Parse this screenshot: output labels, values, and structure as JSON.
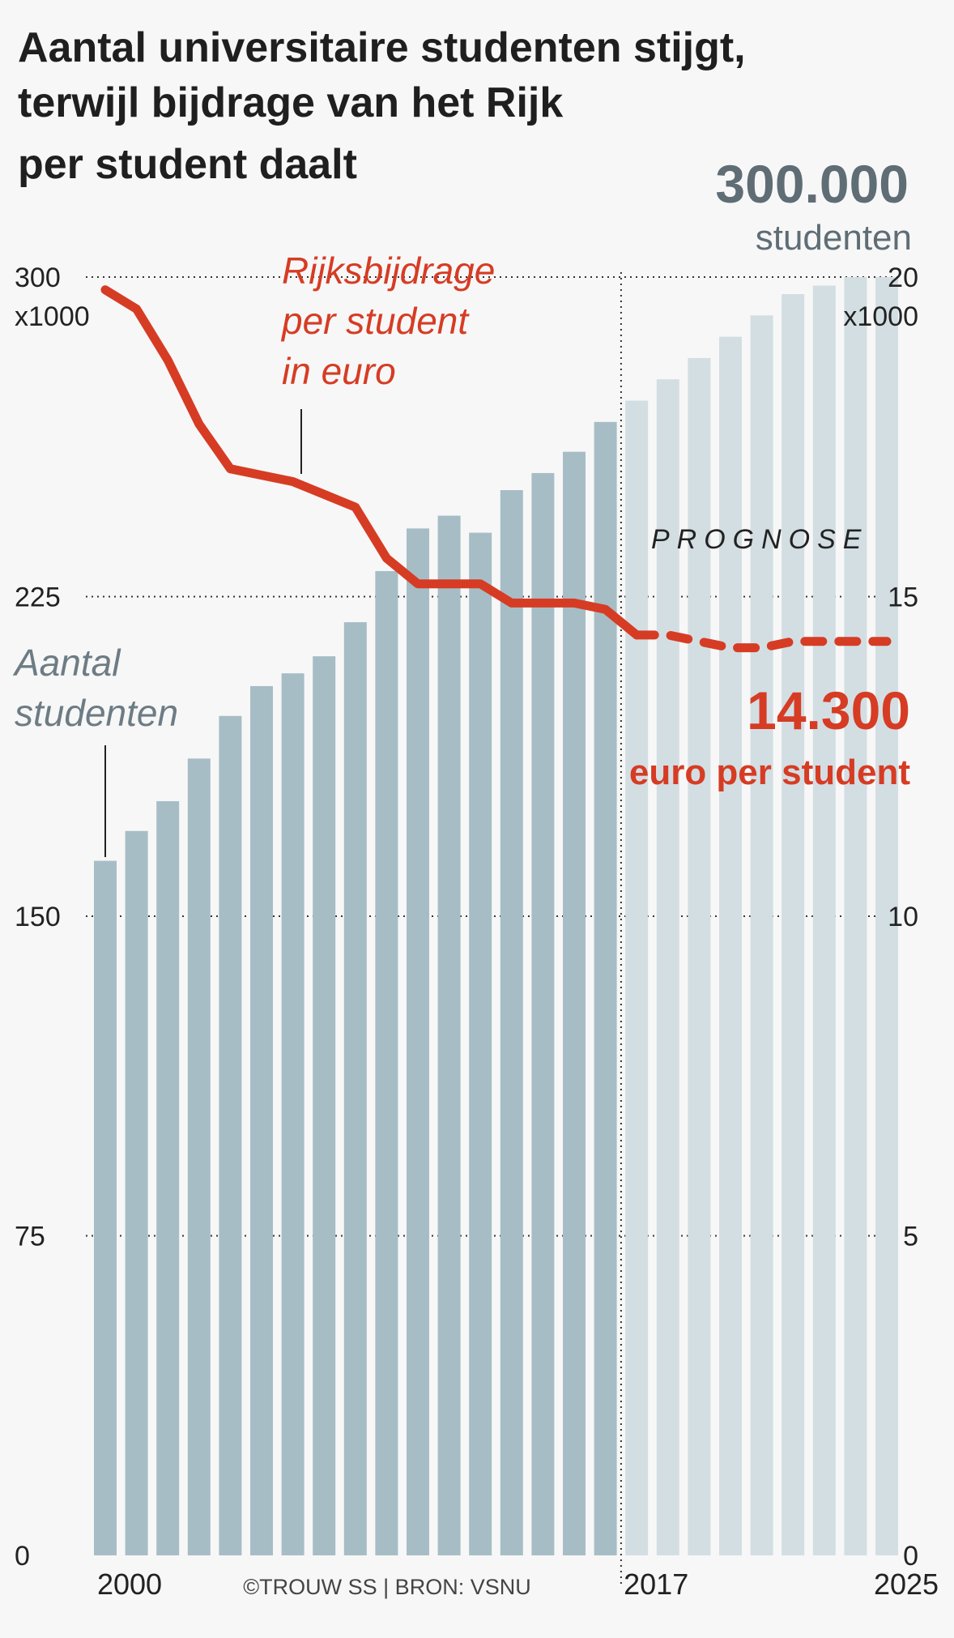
{
  "chart_data": {
    "type": "bar",
    "title": "Aantal universitaire studenten stijgt, terwijl bijdrage van het Rijk per student daalt",
    "title_lines": [
      "Aantal universitaire studenten stijgt,",
      "terwijl bijdrage van het Rijk",
      "per student daalt"
    ],
    "x": [
      2000,
      2001,
      2002,
      2003,
      2004,
      2005,
      2006,
      2007,
      2008,
      2009,
      2010,
      2011,
      2012,
      2013,
      2014,
      2015,
      2016,
      2017,
      2018,
      2019,
      2020,
      2021,
      2022,
      2023,
      2024,
      2025
    ],
    "x_tick_labels": [
      "2000",
      "2017",
      "2025"
    ],
    "series": [
      {
        "name": "Aantal studenten",
        "type": "bar",
        "axis": "left",
        "unit": "x1000",
        "values": [
          163,
          170,
          177,
          187,
          197,
          204,
          207,
          211,
          219,
          231,
          241,
          244,
          240,
          250,
          254,
          259,
          266,
          271,
          276,
          281,
          286,
          291,
          296,
          298,
          300,
          300
        ],
        "color": "#a7bdc6",
        "color_prognose": "#d3dee3"
      },
      {
        "name": "Rijksbijdrage per student in euro",
        "type": "line",
        "axis": "right",
        "unit": "x1000",
        "values": [
          19.8,
          19.5,
          18.7,
          17.7,
          17.0,
          16.9,
          16.8,
          16.6,
          16.4,
          15.6,
          15.2,
          15.2,
          15.2,
          14.9,
          14.9,
          14.9,
          14.8,
          14.4,
          14.4,
          14.3,
          14.2,
          14.2,
          14.3,
          14.3,
          14.3,
          14.3
        ],
        "color": "#d63c24"
      }
    ],
    "prognose_start": 2017,
    "y_left": {
      "ticks": [
        "0",
        "75",
        "150",
        "225",
        "300"
      ],
      "unit": "x1000",
      "ylim": [
        0,
        300
      ]
    },
    "y_right": {
      "ticks": [
        "0",
        "5",
        "10",
        "15",
        "20"
      ],
      "unit": "x1000",
      "ylim": [
        0,
        20
      ]
    },
    "labels": {
      "line_label": [
        "Rijksbijdrage",
        "per student",
        "in euro"
      ],
      "bar_label": [
        "Aantal",
        "studenten"
      ],
      "prognose": "PROGNOSE",
      "bar_end_value": "300.000",
      "bar_end_unit": "studenten",
      "line_end_value": "14.300",
      "line_end_unit": "euro per student"
    },
    "grid": "dotted horizontal",
    "source": "©TROUW SS | BRON: VSNU"
  }
}
